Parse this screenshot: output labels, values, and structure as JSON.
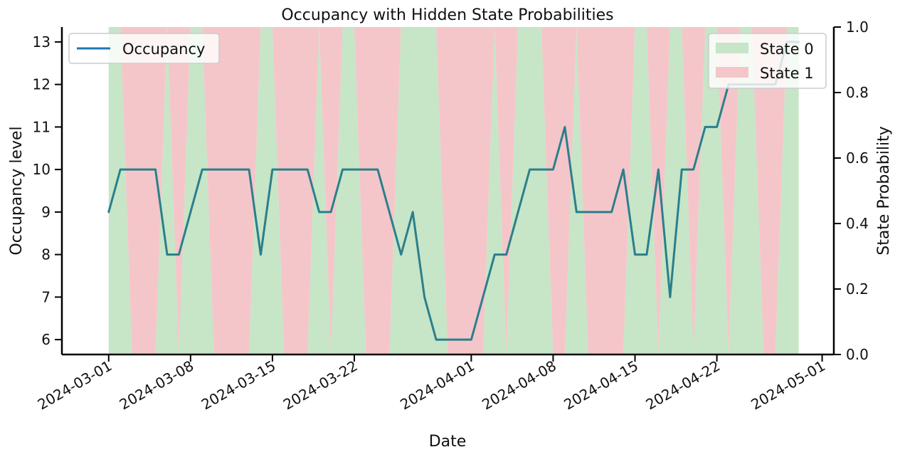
{
  "chart_data": {
    "type": "line",
    "title": "Occupancy with Hidden State Probabilities",
    "xlabel": "Date",
    "ylabel": "Occupancy level",
    "y2label": "State Probability",
    "xlim": [
      "2024-02-26",
      "2024-05-02"
    ],
    "ylim": [
      5.65,
      13.35
    ],
    "y2lim": [
      0,
      1
    ],
    "yticks": [
      6,
      7,
      8,
      9,
      10,
      11,
      12,
      13
    ],
    "y2ticks": [
      "0.0",
      "0.2",
      "0.4",
      "0.6",
      "0.8",
      "1.0"
    ],
    "xticks": [
      "2024-03-01",
      "2024-03-08",
      "2024-03-15",
      "2024-03-22",
      "2024-04-01",
      "2024-04-08",
      "2024-04-15",
      "2024-04-22",
      "2024-05-01"
    ],
    "grid": false,
    "line_legend": {
      "placement": "upper-left",
      "entries": [
        {
          "label": "Occupancy",
          "color": "#1f77b4"
        }
      ]
    },
    "band_legend": {
      "placement": "upper-right",
      "entries": [
        {
          "label": "State 0",
          "color": "#c7e5c7"
        },
        {
          "label": "State 1",
          "color": "#f4c6c9"
        }
      ]
    },
    "series": [
      {
        "name": "Occupancy",
        "color": "#2a7f8c",
        "x": [
          "2024-03-01",
          "2024-03-02",
          "2024-03-03",
          "2024-03-04",
          "2024-03-05",
          "2024-03-06",
          "2024-03-07",
          "2024-03-08",
          "2024-03-09",
          "2024-03-10",
          "2024-03-11",
          "2024-03-12",
          "2024-03-13",
          "2024-03-14",
          "2024-03-15",
          "2024-03-16",
          "2024-03-17",
          "2024-03-18",
          "2024-03-19",
          "2024-03-20",
          "2024-03-21",
          "2024-03-22",
          "2024-03-23",
          "2024-03-24",
          "2024-03-25",
          "2024-03-26",
          "2024-03-27",
          "2024-03-28",
          "2024-03-29",
          "2024-03-30",
          "2024-03-31",
          "2024-04-01",
          "2024-04-02",
          "2024-04-03",
          "2024-04-04",
          "2024-04-05",
          "2024-04-06",
          "2024-04-07",
          "2024-04-08",
          "2024-04-09",
          "2024-04-10",
          "2024-04-11",
          "2024-04-12",
          "2024-04-13",
          "2024-04-14",
          "2024-04-15",
          "2024-04-16",
          "2024-04-17",
          "2024-04-18",
          "2024-04-19",
          "2024-04-20",
          "2024-04-21",
          "2024-04-22",
          "2024-04-23",
          "2024-04-24",
          "2024-04-25",
          "2024-04-26",
          "2024-04-27",
          "2024-04-28",
          "2024-04-29"
        ],
        "values": [
          9,
          10,
          10,
          10,
          10,
          8,
          8,
          9,
          10,
          10,
          10,
          10,
          10,
          8,
          10,
          10,
          10,
          10,
          9,
          9,
          10,
          10,
          10,
          10,
          9,
          8,
          9,
          7,
          6,
          6,
          6,
          6,
          7,
          8,
          8,
          9,
          10,
          10,
          10,
          11,
          9,
          9,
          9,
          9,
          10,
          8,
          8,
          10,
          7,
          10,
          10,
          11,
          11,
          12,
          12,
          12,
          12,
          12,
          13,
          13
        ]
      },
      {
        "name": "State 0",
        "color": "#c7e5c7",
        "x": [
          "2024-03-01",
          "2024-03-02",
          "2024-03-03",
          "2024-03-04",
          "2024-03-05",
          "2024-03-06",
          "2024-03-07",
          "2024-03-08",
          "2024-03-09",
          "2024-03-10",
          "2024-03-11",
          "2024-03-12",
          "2024-03-13",
          "2024-03-14",
          "2024-03-15",
          "2024-03-16",
          "2024-03-17",
          "2024-03-18",
          "2024-03-19",
          "2024-03-20",
          "2024-03-21",
          "2024-03-22",
          "2024-03-23",
          "2024-03-24",
          "2024-03-25",
          "2024-03-26",
          "2024-03-27",
          "2024-03-28",
          "2024-03-29",
          "2024-03-30",
          "2024-03-31",
          "2024-04-01",
          "2024-04-02",
          "2024-04-03",
          "2024-04-04",
          "2024-04-05",
          "2024-04-06",
          "2024-04-07",
          "2024-04-08",
          "2024-04-09",
          "2024-04-10",
          "2024-04-11",
          "2024-04-12",
          "2024-04-13",
          "2024-04-14",
          "2024-04-15",
          "2024-04-16",
          "2024-04-17",
          "2024-04-18",
          "2024-04-19",
          "2024-04-20",
          "2024-04-21",
          "2024-04-22",
          "2024-04-23",
          "2024-04-24",
          "2024-04-25",
          "2024-04-26",
          "2024-04-27",
          "2024-04-28",
          "2024-04-29"
        ],
        "values": [
          1,
          1,
          0,
          0,
          0,
          1,
          0,
          1,
          1,
          0,
          0,
          0,
          0,
          1,
          1,
          0,
          0,
          0,
          1,
          0,
          1,
          1,
          0,
          0,
          0,
          1,
          1,
          1,
          1,
          0,
          0,
          0,
          0,
          1,
          0,
          1,
          1,
          1,
          0,
          0,
          1,
          0,
          0,
          0,
          0,
          1,
          1,
          0,
          1,
          1,
          0,
          1,
          1,
          0,
          1,
          1,
          0,
          0,
          1,
          1
        ]
      },
      {
        "name": "State 1",
        "color": "#f4c6c9",
        "x": [
          "2024-03-01",
          "2024-03-02",
          "2024-03-03",
          "2024-03-04",
          "2024-03-05",
          "2024-03-06",
          "2024-03-07",
          "2024-03-08",
          "2024-03-09",
          "2024-03-10",
          "2024-03-11",
          "2024-03-12",
          "2024-03-13",
          "2024-03-14",
          "2024-03-15",
          "2024-03-16",
          "2024-03-17",
          "2024-03-18",
          "2024-03-19",
          "2024-03-20",
          "2024-03-21",
          "2024-03-22",
          "2024-03-23",
          "2024-03-24",
          "2024-03-25",
          "2024-03-26",
          "2024-03-27",
          "2024-03-28",
          "2024-03-29",
          "2024-03-30",
          "2024-03-31",
          "2024-04-01",
          "2024-04-02",
          "2024-04-03",
          "2024-04-04",
          "2024-04-05",
          "2024-04-06",
          "2024-04-07",
          "2024-04-08",
          "2024-04-09",
          "2024-04-10",
          "2024-04-11",
          "2024-04-12",
          "2024-04-13",
          "2024-04-14",
          "2024-04-15",
          "2024-04-16",
          "2024-04-17",
          "2024-04-18",
          "2024-04-19",
          "2024-04-20",
          "2024-04-21",
          "2024-04-22",
          "2024-04-23",
          "2024-04-24",
          "2024-04-25",
          "2024-04-26",
          "2024-04-27",
          "2024-04-28",
          "2024-04-29"
        ],
        "values": [
          0,
          0,
          1,
          1,
          1,
          0,
          1,
          0,
          0,
          1,
          1,
          1,
          1,
          0,
          0,
          1,
          1,
          1,
          0,
          1,
          0,
          0,
          1,
          1,
          1,
          0,
          0,
          0,
          0,
          1,
          1,
          1,
          1,
          0,
          1,
          0,
          0,
          0,
          1,
          1,
          0,
          1,
          1,
          1,
          1,
          0,
          0,
          1,
          0,
          0,
          1,
          0,
          0,
          1,
          0,
          0,
          1,
          1,
          0,
          0
        ]
      }
    ]
  }
}
